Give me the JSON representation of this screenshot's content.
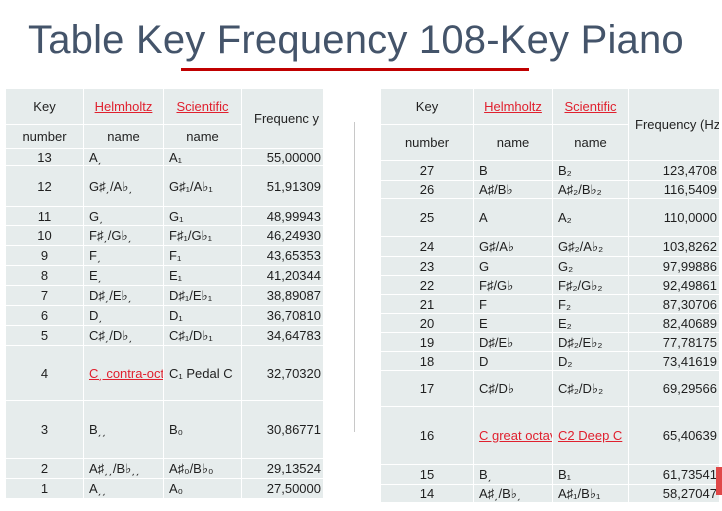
{
  "title": "Table Key Frequency 108-Key Piano",
  "left_table": {
    "headers": {
      "key": "Key",
      "number": "number",
      "helmholtz": "Helmholtz",
      "helmholtz_sub": "name",
      "scientific": "Scientific",
      "scientific_sub": "name",
      "frequency": "Frequenc y (Hz)"
    },
    "rows": [
      {
        "key": "13",
        "helm": "A͵",
        "sci": "A₁",
        "freq": "55,00000"
      },
      {
        "key": "12",
        "helm": "G♯͵/A♭͵",
        "sci": "G♯₁/A♭₁",
        "freq": "51,91309"
      },
      {
        "key": "11",
        "helm": "G͵",
        "sci": "G₁",
        "freq": "48,99943"
      },
      {
        "key": "10",
        "helm": "F♯͵/G♭͵",
        "sci": "F♯₁/G♭₁",
        "freq": "46,24930"
      },
      {
        "key": "9",
        "helm": "F͵",
        "sci": "F₁",
        "freq": "43,65353"
      },
      {
        "key": "8",
        "helm": "E͵",
        "sci": "E₁",
        "freq": "41,20344"
      },
      {
        "key": "7",
        "helm": "D♯͵/E♭͵",
        "sci": "D♯₁/E♭₁",
        "freq": "38,89087"
      },
      {
        "key": "6",
        "helm": "D͵",
        "sci": "D₁",
        "freq": "36,70810"
      },
      {
        "key": "5",
        "helm": "C♯͵/D♭͵",
        "sci": "C♯₁/D♭₁",
        "freq": "34,64783"
      },
      {
        "key": "4",
        "helm": "C͵ contra-octave",
        "sci": "C₁ Pedal C",
        "freq": "32,70320"
      },
      {
        "key": "3",
        "helm": "B͵͵",
        "sci": "B₀",
        "freq": "30,86771"
      },
      {
        "key": "2",
        "helm": "A♯͵͵/B♭͵͵",
        "sci": "A♯₀/B♭₀",
        "freq": "29,13524"
      },
      {
        "key": "1",
        "helm": "A͵͵",
        "sci": "A₀",
        "freq": "27,50000"
      }
    ]
  },
  "right_table": {
    "headers": {
      "key": "Key",
      "number": "number",
      "helmholtz": "Helmholtz",
      "helmholtz_sub": "name",
      "scientific": "Scientific",
      "scientific_sub": "name",
      "frequency": "Frequency (Hz)"
    },
    "rows": [
      {
        "key": "27",
        "helm": "B",
        "sci": "B₂",
        "freq": "123,4708"
      },
      {
        "key": "26",
        "helm": "A♯/B♭",
        "sci": "A♯₂/B♭₂",
        "freq": "116,5409"
      },
      {
        "key": "25",
        "helm": "A",
        "sci": "A₂",
        "freq": "110,0000"
      },
      {
        "key": "24",
        "helm": "G♯/A♭",
        "sci": "G♯₂/A♭₂",
        "freq": "103,8262"
      },
      {
        "key": "23",
        "helm": "G",
        "sci": "G₂",
        "freq": "97,99886"
      },
      {
        "key": "22",
        "helm": "F♯/G♭",
        "sci": "F♯₂/G♭₂",
        "freq": "92,49861"
      },
      {
        "key": "21",
        "helm": "F",
        "sci": "F₂",
        "freq": "87,30706"
      },
      {
        "key": "20",
        "helm": "E",
        "sci": "E₂",
        "freq": "82,40689"
      },
      {
        "key": "19",
        "helm": "D♯/E♭",
        "sci": "D♯₂/E♭₂",
        "freq": "77,78175"
      },
      {
        "key": "18",
        "helm": "D",
        "sci": "D₂",
        "freq": "73,41619"
      },
      {
        "key": "17",
        "helm": "C♯/D♭",
        "sci": "C♯₂/D♭₂",
        "freq": "69,29566"
      },
      {
        "key": "16",
        "helm": "C great octave",
        "sci": "C2 Deep C",
        "freq": "65,40639"
      },
      {
        "key": "15",
        "helm": "B͵",
        "sci": "B₁",
        "freq": "61,73541"
      },
      {
        "key": "14",
        "helm": "A♯͵/B♭͵",
        "sci": "A♯₁/B♭₁",
        "freq": "58,27047"
      }
    ]
  },
  "colors": {
    "title": "#44546a",
    "underline": "#c00000",
    "link": "#e0202e",
    "table_bg": "#e6ecec"
  }
}
